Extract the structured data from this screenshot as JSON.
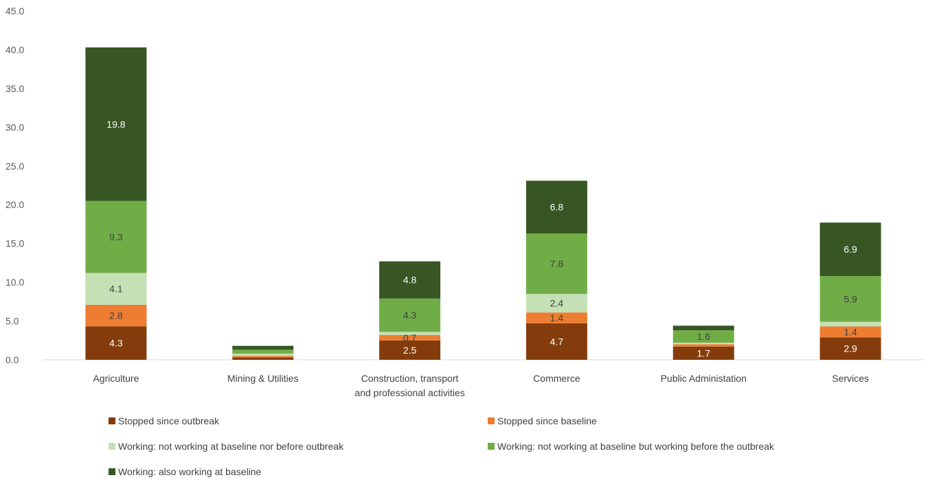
{
  "chart_data": {
    "type": "bar",
    "stacked": true,
    "categories": [
      [
        "Agriculture"
      ],
      [
        "Mining & Utilities"
      ],
      [
        "Construction, transport",
        "and professional activities"
      ],
      [
        "Commerce"
      ],
      [
        "Public Administation"
      ],
      [
        "Services"
      ]
    ],
    "ylim": [
      0,
      45
    ],
    "yticks": [
      "0.0",
      "5.0",
      "10.0",
      "15.0",
      "20.0",
      "25.0",
      "30.0",
      "35.0",
      "40.0",
      "45.0"
    ],
    "grid": false,
    "legend_position": "bottom",
    "series": [
      {
        "name": "Stopped since outbreak",
        "color": "#843c0c",
        "label_color": "#ffffff",
        "values": [
          4.3,
          0.3,
          2.5,
          4.7,
          1.7,
          2.9
        ],
        "labels": [
          "4.3",
          "",
          "2.5",
          "4.7",
          "1.7",
          "2.9"
        ]
      },
      {
        "name": "Stopped since baseline",
        "color": "#ed7d31",
        "label_color": "#404040",
        "values": [
          2.8,
          0.2,
          0.7,
          1.4,
          0.3,
          1.4
        ],
        "labels": [
          "2.8",
          "",
          "0.7",
          "1.4",
          "",
          "1.4"
        ]
      },
      {
        "name": "Working: not working at baseline nor before outbreak",
        "color": "#c5e0b4",
        "label_color": "#404040",
        "values": [
          4.1,
          0.3,
          0.4,
          2.4,
          0.2,
          0.6
        ],
        "labels": [
          "4.1",
          "",
          "",
          "2.4",
          "",
          ""
        ]
      },
      {
        "name": "Working: not working at baseline but working before the outbreak",
        "color": "#70ad47",
        "label_color": "#404040",
        "values": [
          9.3,
          0.5,
          4.3,
          7.8,
          1.6,
          5.9
        ],
        "labels": [
          "9.3",
          "",
          "4.3",
          "7.8",
          "1.6",
          "5.9"
        ]
      },
      {
        "name": "Working: also working at baseline",
        "color": "#375623",
        "label_color": "#ffffff",
        "values": [
          19.8,
          0.5,
          4.8,
          6.8,
          0.6,
          6.9
        ],
        "labels": [
          "19.8",
          "",
          "4.8",
          "6.8",
          "",
          "6.9"
        ]
      }
    ]
  }
}
